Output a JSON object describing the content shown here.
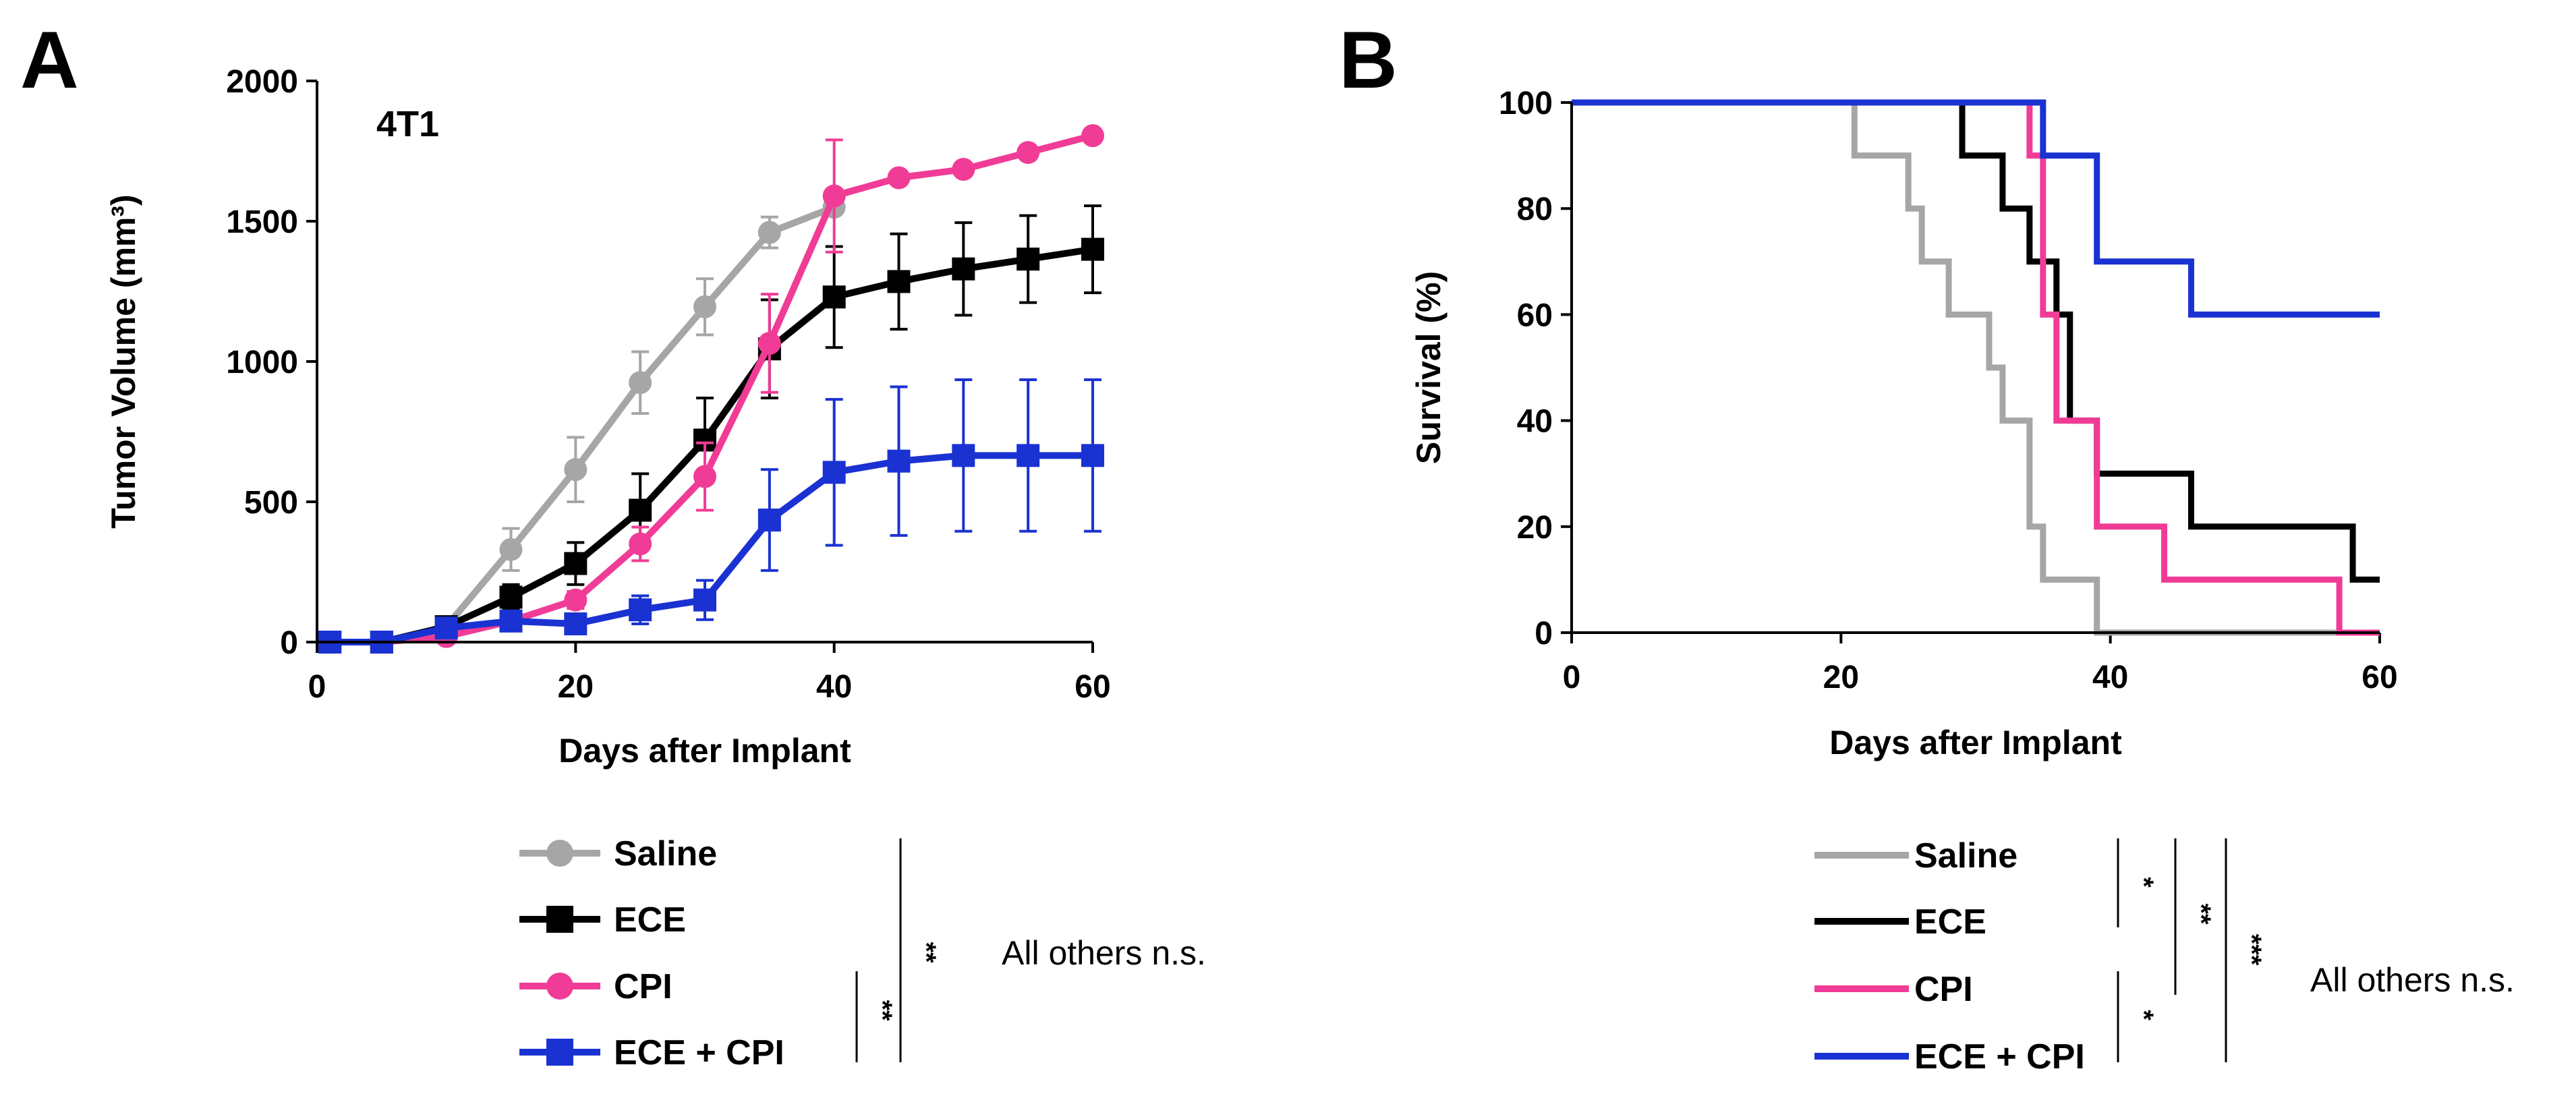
{
  "panels": {
    "a": {
      "letter": "A",
      "inset_label": "4T1",
      "y_title": "Tumor Volume (mm³)",
      "x_title": "Days after Implant",
      "note": "All others n.s.",
      "sig_inner": "**",
      "sig_outer": "**"
    },
    "b": {
      "letter": "B",
      "y_title": "Survival (%)",
      "x_title": "Days after Implant",
      "note": "All others n.s.",
      "sig_saline_ece": "*",
      "sig_saline_cpi": "**",
      "sig_saline_combo": "***",
      "sig_cpi_combo": "*"
    }
  },
  "legend": [
    {
      "name": "Saline",
      "color": "#a6a6a6"
    },
    {
      "name": "ECE",
      "color": "#000000"
    },
    {
      "name": "CPI",
      "color": "#f03c96"
    },
    {
      "name": "ECE + CPI",
      "color": "#1a32d2"
    }
  ],
  "chart_data": [
    {
      "type": "line",
      "title": "4T1",
      "xlabel": "Days after Implant",
      "ylabel": "Tumor Volume (mm³)",
      "xlim": [
        0,
        60
      ],
      "ylim": [
        0,
        2000
      ],
      "x_ticks": [
        "0",
        "20",
        "40",
        "60"
      ],
      "y_ticks": [
        "0",
        "500",
        "1000",
        "1500",
        "2000"
      ],
      "series": [
        {
          "name": "Saline",
          "color": "#a6a6a6",
          "marker": "circle",
          "x": [
            1,
            5,
            10,
            15,
            20,
            25,
            30,
            35,
            40
          ],
          "y": [
            0,
            0,
            55,
            330,
            615,
            925,
            1195,
            1460,
            1550
          ],
          "err": [
            0,
            0,
            10,
            75,
            115,
            110,
            100,
            55,
            20
          ]
        },
        {
          "name": "ECE",
          "color": "#000000",
          "marker": "square",
          "x": [
            1,
            5,
            10,
            15,
            20,
            25,
            30,
            35,
            40,
            45,
            50,
            55,
            60
          ],
          "y": [
            0,
            0,
            55,
            160,
            280,
            470,
            720,
            1045,
            1230,
            1285,
            1330,
            1365,
            1400
          ],
          "err": [
            0,
            0,
            15,
            45,
            75,
            130,
            150,
            175,
            180,
            170,
            165,
            155,
            155
          ]
        },
        {
          "name": "CPI",
          "color": "#f03c96",
          "marker": "circle",
          "x": [
            1,
            5,
            10,
            15,
            20,
            25,
            30,
            35,
            40,
            45,
            50,
            55,
            60
          ],
          "y": [
            0,
            0,
            20,
            75,
            150,
            350,
            590,
            1065,
            1590,
            1655,
            1685,
            1745,
            1805
          ],
          "err": [
            0,
            0,
            5,
            15,
            30,
            60,
            120,
            175,
            200,
            0,
            0,
            0,
            0
          ]
        },
        {
          "name": "ECE + CPI",
          "color": "#1a32d2",
          "marker": "square",
          "x": [
            1,
            5,
            10,
            15,
            20,
            25,
            30,
            35,
            40,
            45,
            50,
            55,
            60
          ],
          "y": [
            0,
            0,
            50,
            75,
            65,
            115,
            150,
            435,
            605,
            645,
            665,
            665,
            665
          ],
          "err": [
            0,
            0,
            10,
            20,
            20,
            50,
            70,
            180,
            260,
            265,
            270,
            270,
            270
          ]
        }
      ]
    },
    {
      "type": "line",
      "title": "",
      "xlabel": "Days after Implant",
      "ylabel": "Survival (%)",
      "xlim": [
        0,
        60
      ],
      "ylim": [
        0,
        100
      ],
      "x_ticks": [
        "0",
        "20",
        "40",
        "60"
      ],
      "y_ticks": [
        "0",
        "20",
        "40",
        "60",
        "80",
        "100"
      ],
      "step": true,
      "series": [
        {
          "name": "Saline",
          "color": "#a6a6a6",
          "x": [
            0,
            21,
            21,
            25,
            25,
            26,
            26,
            28,
            28,
            31,
            31,
            32,
            32,
            34,
            34,
            35,
            35,
            39,
            39,
            60
          ],
          "y": [
            100,
            100,
            90,
            90,
            80,
            80,
            70,
            70,
            60,
            60,
            50,
            50,
            40,
            40,
            20,
            20,
            10,
            10,
            0,
            0
          ]
        },
        {
          "name": "ECE",
          "color": "#000000",
          "x": [
            0,
            29,
            29,
            32,
            32,
            34,
            34,
            36,
            36,
            37,
            37,
            39,
            39,
            46,
            46,
            58,
            58,
            60
          ],
          "y": [
            100,
            100,
            90,
            90,
            80,
            80,
            70,
            70,
            60,
            60,
            40,
            40,
            30,
            30,
            20,
            20,
            10,
            10
          ]
        },
        {
          "name": "CPI",
          "color": "#f03c96",
          "x": [
            0,
            34,
            34,
            35,
            35,
            36,
            36,
            39,
            39,
            44,
            44,
            57,
            57,
            60
          ],
          "y": [
            100,
            100,
            90,
            90,
            60,
            60,
            40,
            40,
            20,
            20,
            10,
            10,
            0,
            0
          ]
        },
        {
          "name": "ECE + CPI",
          "color": "#1a32d2",
          "x": [
            0,
            35,
            35,
            39,
            39,
            46,
            46,
            60
          ],
          "y": [
            100,
            100,
            90,
            90,
            70,
            70,
            60,
            60
          ]
        }
      ]
    }
  ]
}
